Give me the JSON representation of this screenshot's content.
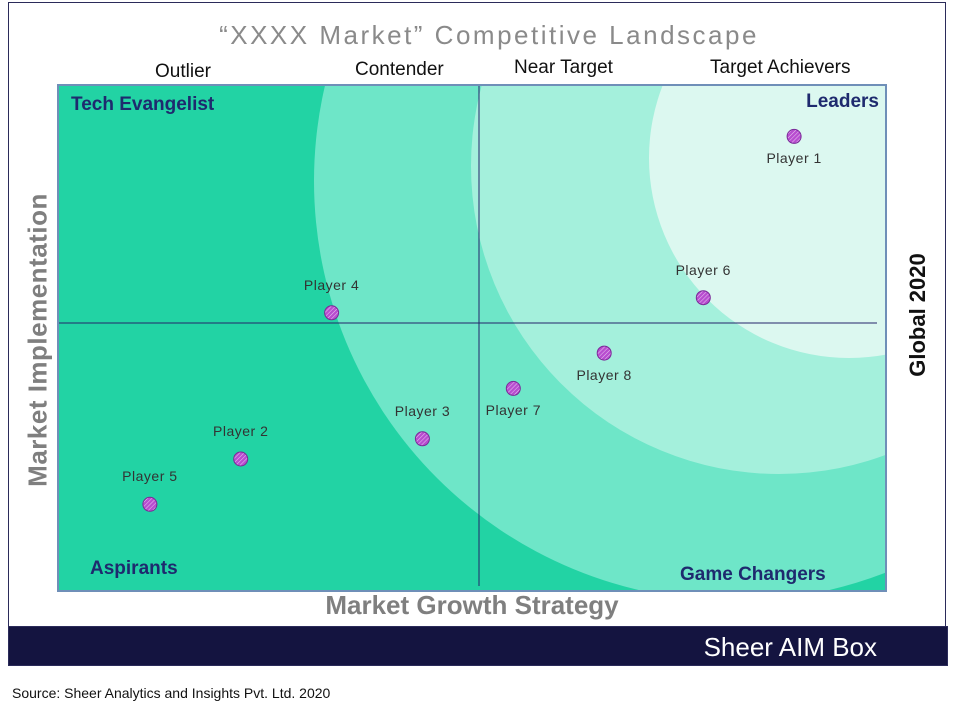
{
  "title": "“XXXX Market” Competitive Landscape",
  "column_headers": [
    "Outlier",
    "Contender",
    "Near Target",
    "Target Achievers"
  ],
  "y_axis_label": "Market Implementation",
  "x_axis_label": "Market Growth Strategy",
  "year_label": "Global 2020",
  "footer_brand": "Sheer AIM Box",
  "source": "Source: Sheer Analytics and Insights Pvt. Ltd. 2020",
  "colors": {
    "band_outlier": "#22d3a4",
    "band_contender": "#6ee6c8",
    "band_near_target": "#a4f0dc",
    "band_target_achievers": "#dcf8f0",
    "marker_fill": "#b84dd0",
    "footer_bg": "#141440",
    "plot_border": "#6f8fb8",
    "quadrant_label": "#1e2a6e"
  },
  "chart_data": {
    "type": "scatter",
    "title": "“XXXX Market” Competitive Landscape",
    "xlabel": "Market Growth Strategy",
    "ylabel": "Market Implementation",
    "xlim": [
      0,
      100
    ],
    "ylim": [
      0,
      100
    ],
    "quadrants": {
      "top_left": "Tech Evangelist",
      "top_right": "Leaders",
      "bottom_left": "Aspirants",
      "bottom_right": "Game Changers"
    },
    "points": [
      {
        "label": "Player 1",
        "x": 89,
        "y": 90
      },
      {
        "label": "Player 2",
        "x": 22,
        "y": 26
      },
      {
        "label": "Player 3",
        "x": 44,
        "y": 30
      },
      {
        "label": "Player 4",
        "x": 33,
        "y": 55
      },
      {
        "label": "Player 5",
        "x": 11,
        "y": 17
      },
      {
        "label": "Player 6",
        "x": 78,
        "y": 58
      },
      {
        "label": "Player 7",
        "x": 55,
        "y": 40
      },
      {
        "label": "Player 8",
        "x": 66,
        "y": 47
      }
    ]
  }
}
